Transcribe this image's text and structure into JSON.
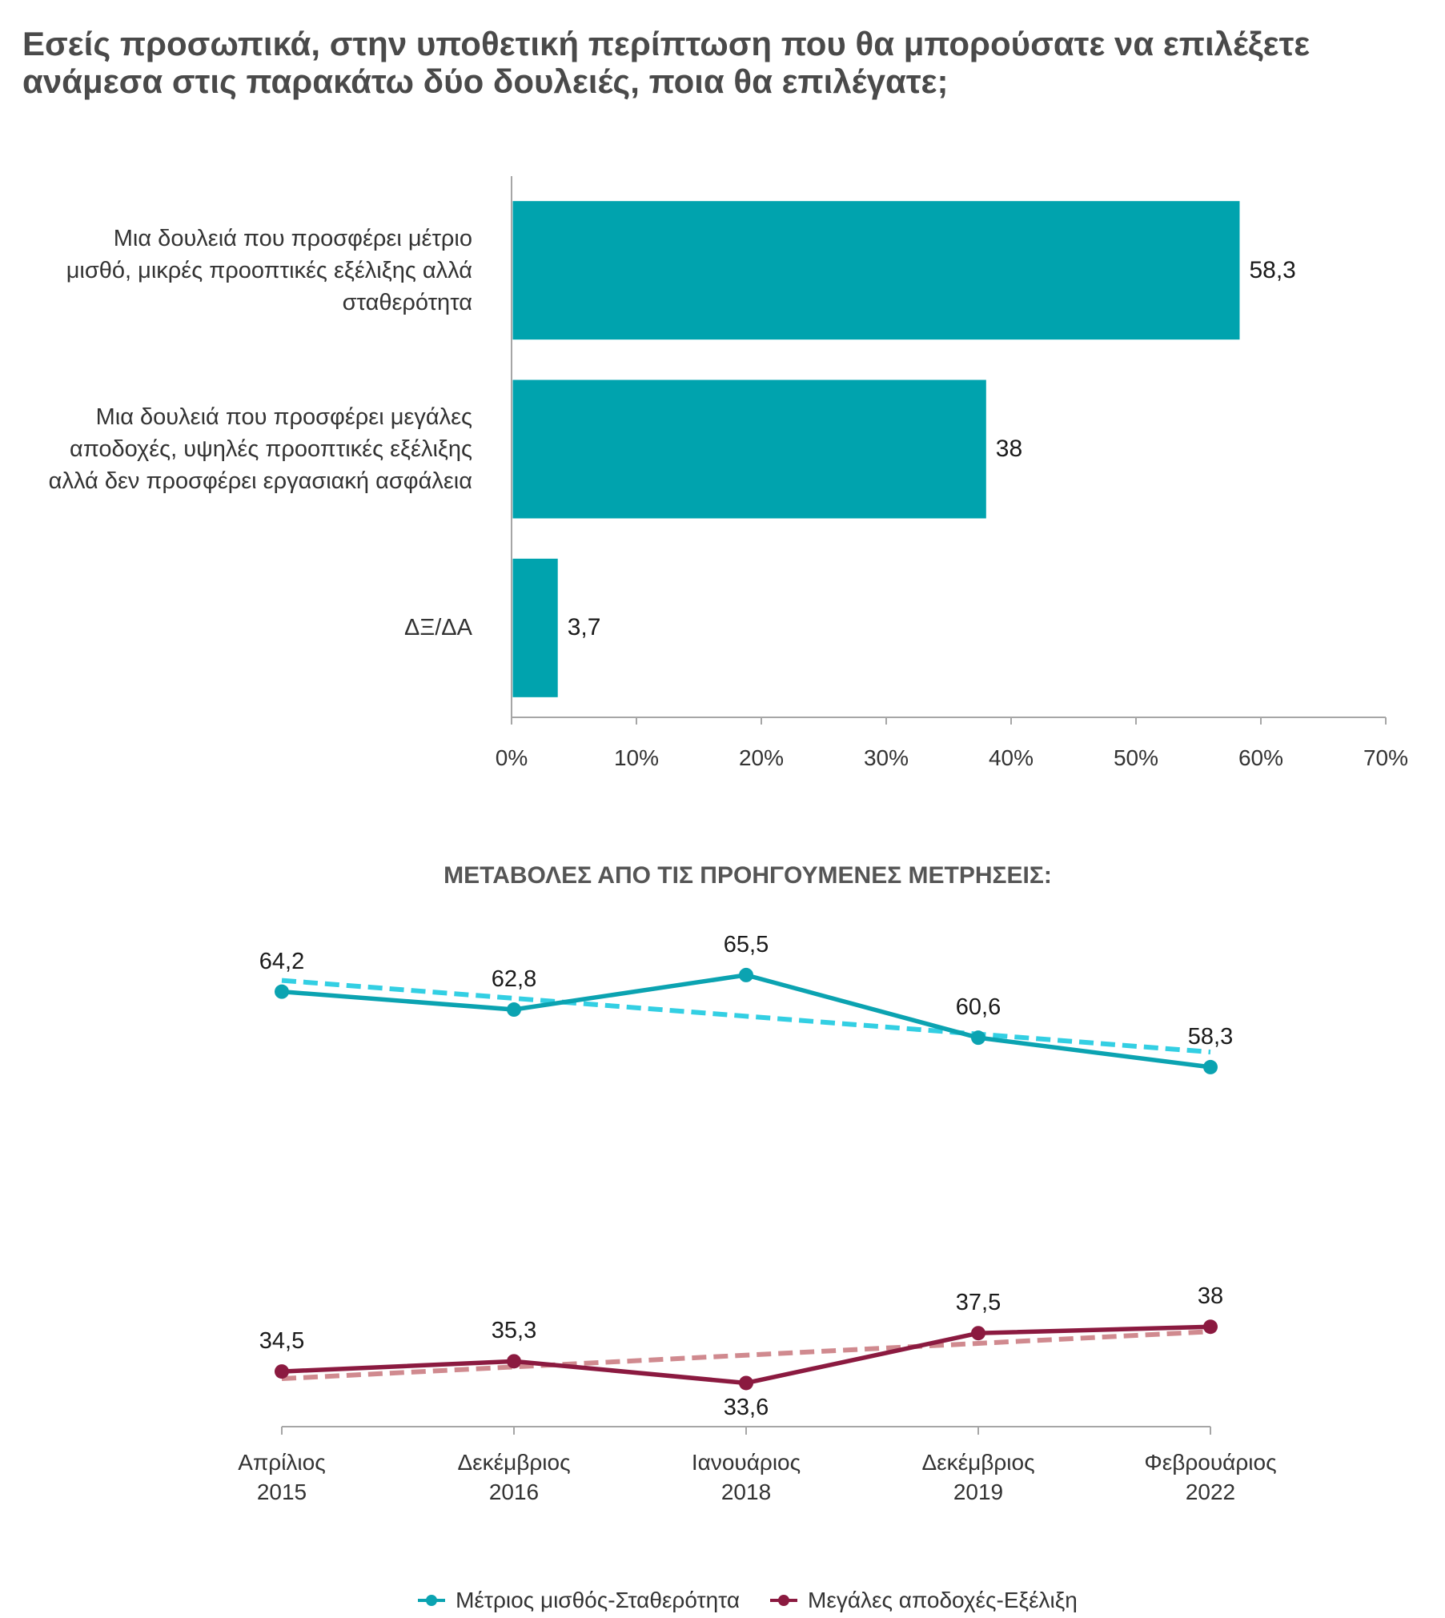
{
  "title": "Εσείς προσωπικά, στην υποθετική περίπτωση που θα μπορούσατε να επιλέξετε\nανάμεσα στις παρακάτω δύο δουλειές, ποια θα επιλέγατε;",
  "chart_data": [
    {
      "type": "bar",
      "orientation": "horizontal",
      "categories": [
        "Μια δουλειά που προσφέρει μέτριο\nμισθό, μικρές προοπτικές εξέλιξης αλλά\nσταθερότητα",
        "Μια δουλειά που προσφέρει μεγάλες\nαποδοχές, υψηλές προοπτικές εξέλιξης\nαλλά δεν προσφέρει εργασιακή ασφάλεια",
        "ΔΞ/ΔΑ"
      ],
      "values": [
        58.3,
        38,
        3.7
      ],
      "value_labels": [
        "58,3",
        "38",
        "3,7"
      ],
      "tick_labels": [
        "0%",
        "10%",
        "20%",
        "30%",
        "40%",
        "50%",
        "60%",
        "70%"
      ],
      "xlim": [
        0,
        70
      ],
      "grid": false,
      "color": "#00a3ae",
      "axis_color": "#a6a6a6"
    },
    {
      "type": "line",
      "title": "ΜΕΤΑΒΟΛΕΣ ΑΠΟ ΤΙΣ ΠΡΟΗΓΟΥΜΕΝΕΣ ΜΕΤΡΗΣΕΙΣ:",
      "categories": [
        "Απρίλιος\n2015",
        "Δεκέμβριος\n2016",
        "Ιανουάριος\n2018",
        "Δεκέμβριος\n2019",
        "Φεβρουάριος\n2022"
      ],
      "series": [
        {
          "name": "Μέτριος μισθός-Σταθερότητα",
          "values": [
            64.2,
            62.8,
            65.5,
            60.6,
            58.3
          ],
          "labels": [
            "64,2",
            "62,8",
            "65,5",
            "60,6",
            "58,3"
          ],
          "label_positions": [
            "above",
            "above",
            "above",
            "above",
            "above"
          ],
          "color": "#0ba3b1",
          "trendline": "linear",
          "trendline_color": "#33cfe3"
        },
        {
          "name": "Μεγάλες αποδοχές-Εξέλιξη",
          "values": [
            34.5,
            35.3,
            33.6,
            37.5,
            38
          ],
          "labels": [
            "34,5",
            "35,3",
            "33,6",
            "37,5",
            "38"
          ],
          "label_positions": [
            "above",
            "above",
            "below",
            "above",
            "above"
          ],
          "color": "#8b1a40",
          "trendline": "linear",
          "trendline_color": "#d08a8f"
        }
      ],
      "ylim": [
        30,
        70
      ],
      "grid": false,
      "legend": "bottom",
      "axis_color": "#a6a6a6"
    }
  ]
}
